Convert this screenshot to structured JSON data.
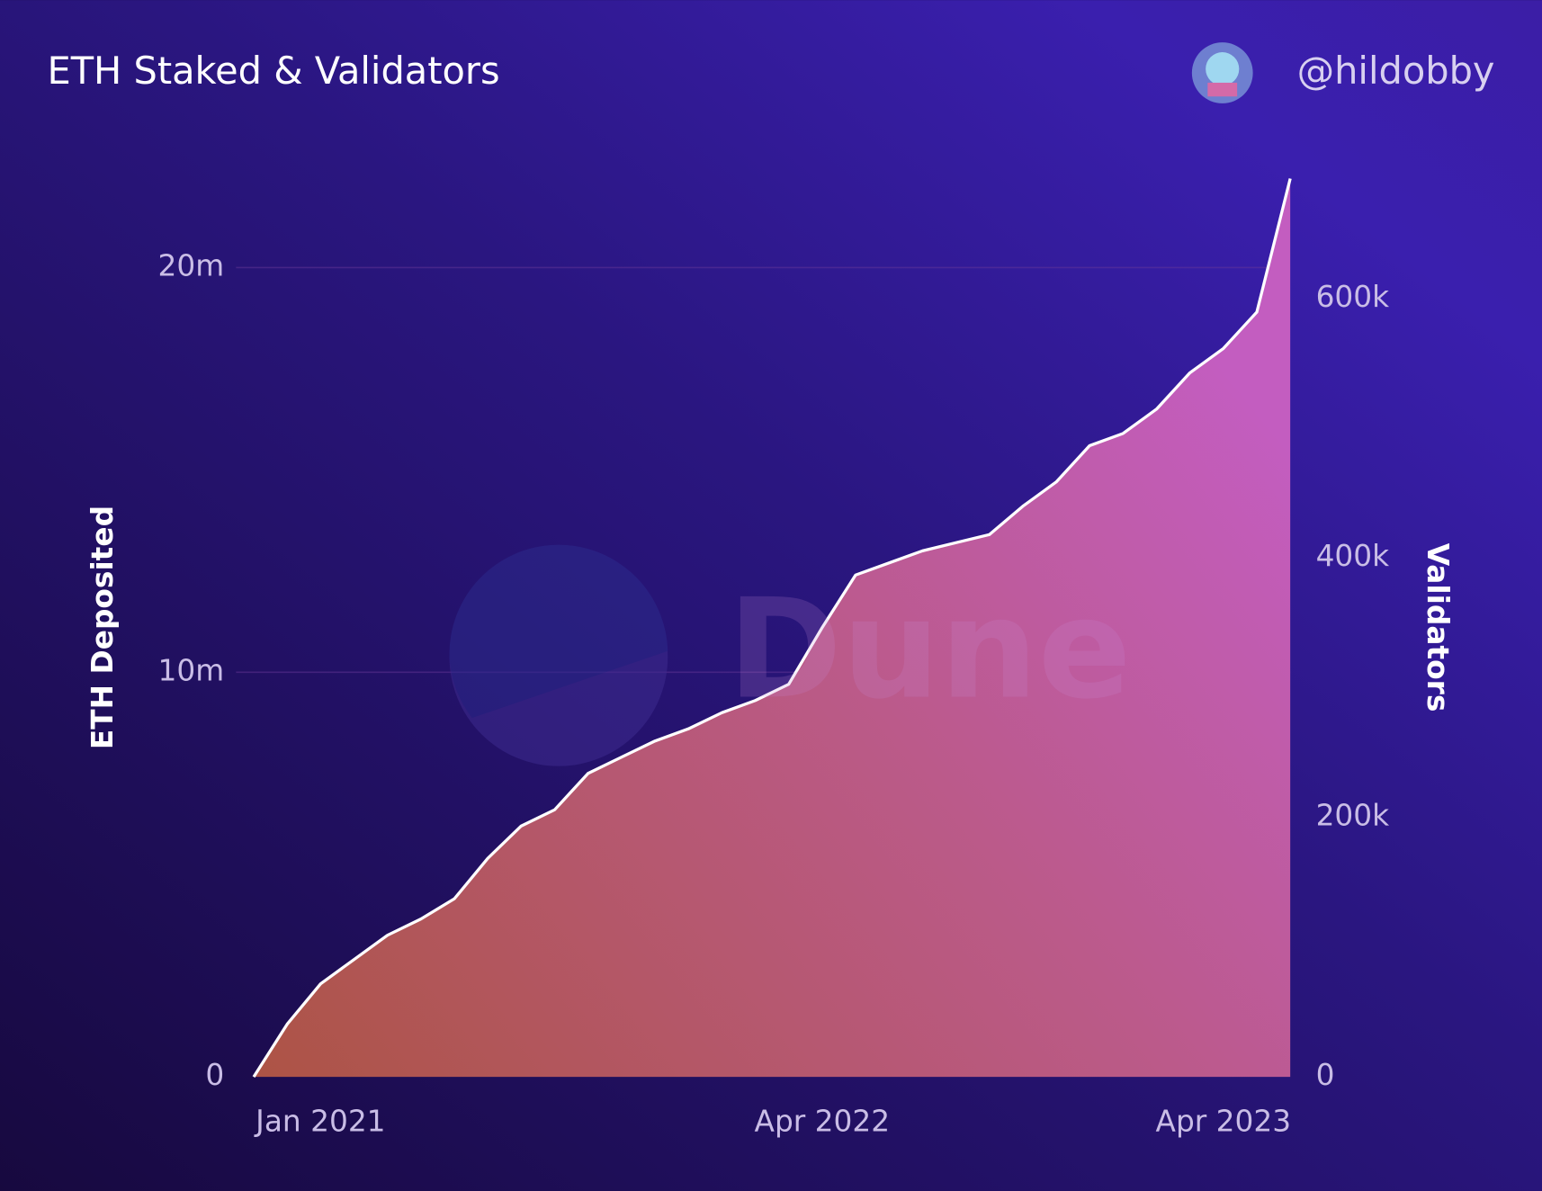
{
  "chart_data": {
    "type": "area",
    "title": "ETH Staked & Validators",
    "author": "@hildobby",
    "watermark": "Dune",
    "ylabel": "ETH Deposited",
    "y2label": "Validators",
    "x": [
      "2020-11",
      "2020-12",
      "2021-01",
      "2021-02",
      "2021-03",
      "2021-04",
      "2021-05",
      "2021-06",
      "2021-07",
      "2021-08",
      "2021-09",
      "2021-10",
      "2021-11",
      "2021-12",
      "2022-01",
      "2022-02",
      "2022-03",
      "2022-04",
      "2022-05",
      "2022-06",
      "2022-07",
      "2022-08",
      "2022-09",
      "2022-10",
      "2022-11",
      "2022-12",
      "2023-01",
      "2023-02",
      "2023-03",
      "2023-04",
      "2023-05",
      "2023-06"
    ],
    "series": [
      {
        "color": "#ffffff",
        "values": [
          0,
          1300000,
          2300000,
          2900000,
          3500000,
          3900000,
          4400000,
          5400000,
          6200000,
          6600000,
          7500000,
          7900000,
          8300000,
          8600000,
          9000000,
          9300000,
          9700000,
          11100000,
          12400000,
          12700000,
          13000000,
          13200000,
          13400000,
          14100000,
          14700000,
          15600000,
          15900000,
          16500000,
          17400000,
          18000000,
          18900000,
          22200000
        ]
      }
    ],
    "xlim": [
      "2020-11",
      "2023-06"
    ],
    "xticks": [
      {
        "value": "2021-01",
        "label": "Jan 2021"
      },
      {
        "value": "2022-04",
        "label": "Apr 2022"
      },
      {
        "value": "2023-04",
        "label": "Apr 2023"
      }
    ],
    "ylim": [
      0,
      22250000
    ],
    "yticks": [
      0,
      {
        "value": 10000000,
        "label": "10m"
      },
      {
        "value": 20000000,
        "label": "20m"
      }
    ],
    "y2lim": [
      0,
      694000
    ],
    "y2ticks": [
      0,
      {
        "value": 200000,
        "label": "200k"
      },
      {
        "value": 400000,
        "label": "400k"
      },
      {
        "value": 600000,
        "label": "600k"
      }
    ],
    "grid": true
  }
}
